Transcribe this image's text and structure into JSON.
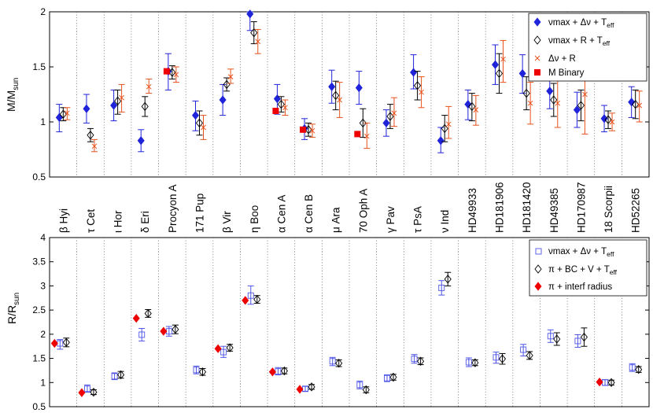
{
  "colors": {
    "blue": "#1f23d9",
    "orange": "#e8511c",
    "red": "#ee0000",
    "light_blue": "#4e55e6",
    "black": "#000000",
    "grid": "#555555"
  },
  "chart_data": [
    {
      "type": "scatter",
      "title": "",
      "ylabel_main": "M/M",
      "ylabel_sub": "sun",
      "ylim": [
        0.5,
        2
      ],
      "yticks": [
        "0.5",
        "1",
        "1.5",
        "2"
      ],
      "categories": [
        "β Hyi",
        "τ Cet",
        "ι Hor",
        "δ Eri",
        "Procyon A",
        "171 Pup",
        "β Vir",
        "η Boo",
        "α Cen A",
        "α Cen B",
        "μ Ara",
        "70 Oph A",
        "γ Pav",
        "τ PsA",
        "ν Ind",
        "HD49933",
        "HD181906",
        "HD181420",
        "HD49385",
        "HD170987",
        "18 Scorpii",
        "HD52265"
      ],
      "legend_position": "top-right",
      "series": [
        {
          "key": "m_scaling",
          "name_main": "νmax + Δν + T",
          "name_sub": "eff",
          "marker": "filled-diamond",
          "color": "#1f23d9",
          "values": [
            1.04,
            1.12,
            1.15,
            0.83,
            1.46,
            1.06,
            1.2,
            1.98,
            1.21,
            0.94,
            1.32,
            1.31,
            0.99,
            1.45,
            0.83,
            1.16,
            1.52,
            1.44,
            1.28,
            1.11,
            1.03,
            1.18
          ],
          "lower": [
            0.91,
            0.99,
            1.01,
            0.73,
            1.29,
            0.92,
            1.06,
            1.83,
            1.07,
            0.84,
            1.17,
            1.16,
            0.87,
            1.3,
            0.72,
            1.02,
            1.34,
            1.26,
            1.12,
            0.95,
            0.91,
            1.04
          ],
          "upper": [
            1.16,
            1.25,
            1.29,
            0.93,
            1.62,
            1.19,
            1.34,
            2.0,
            1.34,
            1.03,
            1.47,
            1.46,
            1.11,
            1.61,
            0.95,
            1.29,
            1.7,
            1.61,
            1.43,
            1.27,
            1.15,
            1.32
          ]
        },
        {
          "key": "m_radius",
          "name_main": "νmax + R + T",
          "name_sub": "eff",
          "marker": "open-diamond",
          "color": "#000000",
          "values": [
            1.07,
            0.88,
            1.19,
            1.14,
            1.45,
            0.99,
            1.34,
            1.81,
            1.16,
            0.93,
            1.24,
            0.99,
            1.05,
            1.33,
            0.94,
            1.14,
            1.44,
            1.26,
            1.2,
            1.15,
            1.02,
            1.16
          ],
          "lower": [
            1.01,
            0.82,
            1.07,
            1.05,
            1.39,
            0.88,
            1.28,
            1.71,
            1.09,
            0.87,
            1.11,
            0.86,
            0.94,
            1.2,
            0.82,
            1.01,
            1.26,
            1.11,
            1.05,
            1.01,
            0.94,
            1.03
          ],
          "upper": [
            1.13,
            0.94,
            1.29,
            1.23,
            1.51,
            1.1,
            1.4,
            1.91,
            1.23,
            0.99,
            1.37,
            1.12,
            1.16,
            1.46,
            1.06,
            1.26,
            1.62,
            1.41,
            1.35,
            1.29,
            1.1,
            1.29
          ]
        },
        {
          "key": "m_dnu_r",
          "name_main": "Δν + R",
          "name_sub": "",
          "marker": "cross",
          "color": "#e8511c",
          "values": [
            1.08,
            0.78,
            1.22,
            1.32,
            1.43,
            0.95,
            1.41,
            1.73,
            1.13,
            0.92,
            1.2,
            0.87,
            1.08,
            1.27,
            0.98,
            1.11,
            1.57,
            1.17,
            1.17,
            1.25,
            1.0,
            1.15
          ],
          "lower": [
            1.02,
            0.73,
            1.09,
            1.26,
            1.36,
            0.84,
            1.35,
            1.62,
            1.06,
            0.86,
            1.04,
            0.76,
            0.96,
            1.13,
            0.85,
            0.97,
            1.36,
            0.98,
            0.95,
            0.89,
            0.92,
            1.0
          ],
          "upper": [
            1.13,
            0.84,
            1.34,
            1.39,
            1.5,
            1.06,
            1.48,
            1.84,
            1.2,
            0.98,
            1.36,
            0.99,
            1.22,
            1.41,
            1.14,
            1.24,
            1.74,
            1.36,
            1.4,
            1.52,
            1.08,
            1.28
          ]
        },
        {
          "key": "m_binary",
          "name_main": "M Binary",
          "name_sub": "",
          "marker": "filled-square",
          "color": "#ee0000",
          "points": [
            {
              "category": "Procyon A",
              "value": 1.46
            },
            {
              "category": "α Cen A",
              "value": 1.1
            },
            {
              "category": "α Cen B",
              "value": 0.93
            },
            {
              "category": "70 Oph A",
              "value": 0.89
            }
          ]
        }
      ]
    },
    {
      "type": "scatter",
      "title": "",
      "ylabel_main": "R/R",
      "ylabel_sub": "sun",
      "ylim": [
        0.5,
        4
      ],
      "yticks": [
        "0.5",
        "1",
        "1.5",
        "2",
        "2.5",
        "3",
        "3.5",
        "4"
      ],
      "legend_position": "top-right",
      "series": [
        {
          "key": "r_scaling",
          "name_main": "νmax + Δν + T",
          "name_sub": "eff",
          "marker": "open-square",
          "color": "#4e55e6",
          "values": [
            1.81,
            0.87,
            1.13,
            1.99,
            2.06,
            1.26,
            1.63,
            2.8,
            1.23,
            0.87,
            1.44,
            0.95,
            1.09,
            1.49,
            2.96,
            1.42,
            1.52,
            1.68,
            1.96,
            1.86,
            1.0,
            1.31
          ],
          "lower": [
            1.69,
            0.8,
            1.06,
            1.86,
            1.96,
            1.18,
            1.52,
            2.62,
            1.16,
            0.82,
            1.35,
            0.87,
            1.02,
            1.4,
            2.81,
            1.33,
            1.4,
            1.55,
            1.83,
            1.73,
            0.94,
            1.23
          ],
          "upper": [
            1.89,
            0.95,
            1.2,
            2.12,
            2.16,
            1.34,
            1.75,
            3.0,
            1.31,
            0.92,
            1.52,
            1.03,
            1.16,
            1.58,
            3.11,
            1.51,
            1.63,
            1.79,
            2.09,
            1.99,
            1.06,
            1.39
          ]
        },
        {
          "key": "r_bc",
          "name_main": "π + BC + V + T",
          "name_sub": "eff",
          "marker": "open-diamond",
          "color": "#000000",
          "values": [
            1.83,
            0.8,
            1.16,
            2.43,
            2.1,
            1.22,
            1.72,
            2.72,
            1.24,
            0.91,
            1.4,
            0.85,
            1.11,
            1.44,
            3.14,
            1.41,
            1.49,
            1.56,
            1.9,
            1.94,
            1.0,
            1.27
          ],
          "lower": [
            1.74,
            0.75,
            1.09,
            2.35,
            2.01,
            1.15,
            1.65,
            2.64,
            1.18,
            0.86,
            1.33,
            0.79,
            1.05,
            1.37,
            3.0,
            1.35,
            1.38,
            1.48,
            1.77,
            1.75,
            0.95,
            1.21
          ],
          "upper": [
            1.92,
            0.85,
            1.23,
            2.51,
            2.19,
            1.29,
            1.79,
            2.8,
            1.3,
            0.96,
            1.47,
            0.91,
            1.17,
            1.51,
            3.28,
            1.47,
            1.6,
            1.64,
            2.03,
            2.13,
            1.05,
            1.33
          ]
        },
        {
          "key": "r_interf",
          "name_main": "π + interf radius",
          "name_sub": "",
          "marker": "filled-diamond",
          "color": "#ee0000",
          "points": [
            {
              "category": "β Hyi",
              "value": 1.81
            },
            {
              "category": "τ Cet",
              "value": 0.79
            },
            {
              "category": "δ Eri",
              "value": 2.33
            },
            {
              "category": "Procyon A",
              "value": 2.06
            },
            {
              "category": "β Vir",
              "value": 1.7
            },
            {
              "category": "η Boo",
              "value": 2.7
            },
            {
              "category": "α Cen A",
              "value": 1.22
            },
            {
              "category": "α Cen B",
              "value": 0.86
            },
            {
              "category": "18 Scorpii",
              "value": 1.01
            }
          ]
        }
      ]
    }
  ]
}
